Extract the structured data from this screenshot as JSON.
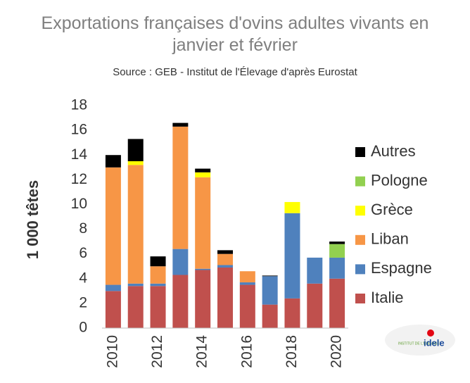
{
  "chart_data": {
    "type": "stacked_bar",
    "title": "Exportations françaises d'ovins adultes vivants en janvier et février",
    "subtitle": "Source : GEB - Institut de l'Élevage d'après Eurostat",
    "y_label": "1 000 têtes",
    "categories": [
      "2010",
      null,
      "2012",
      null,
      "2014",
      null,
      "2016",
      null,
      "2018",
      null,
      "2020"
    ],
    "series": [
      {
        "name": "Italie",
        "color": "#c0504d",
        "values": [
          3.0,
          3.4,
          3.4,
          4.3,
          4.7,
          4.9,
          3.5,
          1.9,
          2.4,
          3.6,
          4.0
        ]
      },
      {
        "name": "Espagne",
        "color": "#4f81bd",
        "values": [
          0.5,
          0.2,
          0.2,
          2.1,
          0.1,
          0.2,
          0.2,
          2.3,
          6.9,
          2.1,
          1.7
        ]
      },
      {
        "name": "Liban",
        "color": "#f79646",
        "values": [
          9.5,
          9.6,
          1.4,
          9.9,
          7.4,
          0.9,
          0.9,
          0,
          0,
          0,
          0
        ]
      },
      {
        "name": "Grèce",
        "color": "#ffff00",
        "values": [
          0,
          0.3,
          0,
          0,
          0.4,
          0,
          0,
          0,
          0.9,
          0,
          0
        ]
      },
      {
        "name": "Pologne",
        "color": "#92d050",
        "values": [
          0,
          0,
          0,
          0,
          0,
          0,
          0,
          0,
          0,
          0,
          1.1
        ]
      },
      {
        "name": "Autres",
        "color": "#000000",
        "values": [
          1.0,
          1.8,
          0.8,
          0.3,
          0.3,
          0.3,
          0,
          0.05,
          0,
          0,
          0.2
        ]
      }
    ],
    "ylim": [
      0,
      18
    ],
    "yticks": [
      0,
      2,
      4,
      6,
      8,
      10,
      12,
      14,
      16,
      18
    ],
    "grid": false,
    "legend": "right"
  },
  "logo": {
    "small": "INSTITUT DE L'ÉLEVAGE",
    "brand": "idele"
  }
}
